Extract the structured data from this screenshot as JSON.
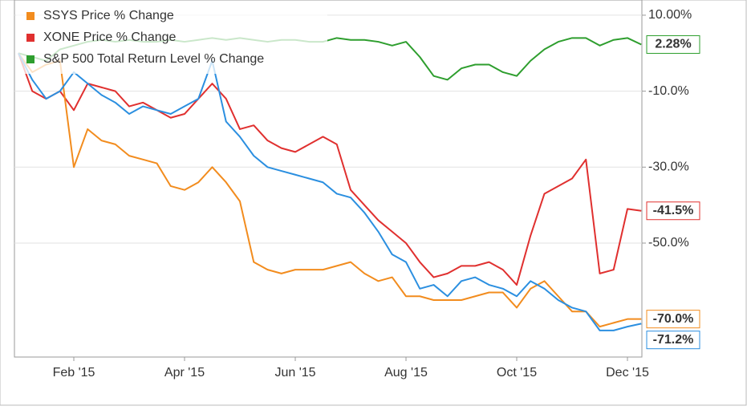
{
  "chart_data": {
    "type": "line",
    "categories": [
      null,
      null,
      null,
      null,
      "Feb '15",
      null,
      null,
      null,
      null,
      null,
      null,
      null,
      "Apr '15",
      null,
      null,
      null,
      null,
      null,
      null,
      null,
      "Jun '15",
      null,
      null,
      null,
      null,
      null,
      null,
      null,
      "Aug '15",
      null,
      null,
      null,
      null,
      null,
      null,
      null,
      "Oct '15",
      null,
      null,
      null,
      null,
      null,
      null,
      null,
      "Dec '15",
      null
    ],
    "series": [
      {
        "color": "#2b8fe0",
        "values": [
          0,
          -7,
          -12,
          -10,
          -5,
          -8,
          -11,
          -13,
          -16,
          -14,
          -15,
          -16,
          -14,
          -12,
          -2,
          -18,
          -22,
          -27,
          -30,
          -31,
          -32,
          -33,
          -34,
          -37,
          -38,
          -42,
          -47,
          -53,
          -55,
          -62,
          -61,
          -64,
          -60,
          -59,
          -61,
          -62,
          -64,
          -60,
          -62,
          -65,
          -67,
          -68,
          -73,
          -73,
          -72,
          -71.2
        ],
        "value_labels": [
          null,
          null,
          null,
          null,
          null,
          null,
          null,
          null,
          null,
          null,
          null,
          null,
          null,
          null,
          null,
          null,
          null,
          null,
          null,
          null,
          null,
          null,
          null,
          null,
          null,
          null,
          null,
          null,
          null,
          null,
          null,
          null,
          null,
          null,
          null,
          null,
          null,
          null,
          null,
          null,
          null,
          null,
          null,
          null,
          null,
          "-71.2%"
        ]
      },
      {
        "name": "SSYS Price % Change",
        "color": "#f28c1e",
        "values": [
          0,
          -5,
          -3,
          -2,
          -30,
          -20,
          -23,
          -24,
          -27,
          -28,
          -29,
          -35,
          -36,
          -34,
          -30,
          -34,
          -39,
          -55,
          -57,
          -58,
          -57,
          -57,
          -57,
          -56,
          -55,
          -58,
          -60,
          -59,
          -64,
          -64,
          -65,
          -65,
          -65,
          -64,
          -63,
          -63,
          -67,
          -62,
          -60,
          -64,
          -68,
          -68,
          -72,
          -71,
          -70,
          -70.0
        ],
        "value_labels": [
          null,
          null,
          null,
          null,
          null,
          null,
          null,
          null,
          null,
          null,
          null,
          null,
          null,
          null,
          null,
          null,
          null,
          null,
          null,
          null,
          null,
          null,
          null,
          null,
          null,
          null,
          null,
          null,
          null,
          null,
          null,
          null,
          null,
          null,
          null,
          null,
          null,
          null,
          null,
          null,
          null,
          null,
          null,
          null,
          null,
          "-70.0%"
        ]
      },
      {
        "name": "XONE Price % Change",
        "color": "#e0302f",
        "values": [
          0,
          -10,
          -12,
          -10,
          -15,
          -8,
          -9,
          -10,
          -14,
          -13,
          -15,
          -17,
          -16,
          -12,
          -8,
          -12,
          -20,
          -19,
          -23,
          -25,
          -26,
          -24,
          -22,
          -24,
          -36,
          -40,
          -44,
          -47,
          -50,
          -55,
          -59,
          -58,
          -56,
          -56,
          -55,
          -57,
          -61,
          -48,
          -37,
          -35,
          -33,
          -28,
          -58,
          -57,
          -41,
          -41.5
        ],
        "value_labels": [
          null,
          null,
          null,
          null,
          null,
          null,
          null,
          null,
          null,
          null,
          null,
          null,
          null,
          null,
          null,
          null,
          null,
          null,
          null,
          null,
          null,
          null,
          null,
          null,
          null,
          null,
          null,
          null,
          null,
          null,
          null,
          null,
          null,
          null,
          null,
          null,
          null,
          null,
          null,
          null,
          null,
          null,
          null,
          null,
          null,
          "-41.5%"
        ]
      },
      {
        "name": "S&P 500 Total Return Level % Change",
        "color": "#2e9e2e",
        "values": [
          0,
          -1,
          -2,
          1,
          2,
          3,
          3.5,
          3,
          3.5,
          3,
          3,
          3.5,
          3,
          3.5,
          4,
          3.5,
          4,
          3.5,
          3,
          3.5,
          3.5,
          3,
          3,
          4,
          3.5,
          3.5,
          3,
          2,
          3,
          -1,
          -6,
          -7,
          -4,
          -3,
          -3,
          -5,
          -6,
          -2,
          1,
          3,
          4,
          4,
          2,
          3.5,
          4,
          2.28
        ],
        "value_labels": [
          null,
          null,
          null,
          null,
          null,
          null,
          null,
          null,
          null,
          null,
          null,
          null,
          null,
          null,
          null,
          null,
          null,
          null,
          null,
          null,
          null,
          null,
          null,
          null,
          null,
          null,
          null,
          null,
          null,
          null,
          null,
          null,
          null,
          null,
          null,
          null,
          null,
          null,
          null,
          null,
          null,
          null,
          null,
          null,
          null,
          "2.28%"
        ]
      }
    ],
    "ylim": [
      -80,
      14
    ],
    "yticks": [
      {
        "value": 10,
        "label": "10.00%"
      },
      {
        "value": -10,
        "label": "-10.0%"
      },
      {
        "value": -30,
        "label": "-30.0%"
      },
      {
        "value": -50,
        "label": "-50.0%"
      }
    ],
    "grid": true
  }
}
